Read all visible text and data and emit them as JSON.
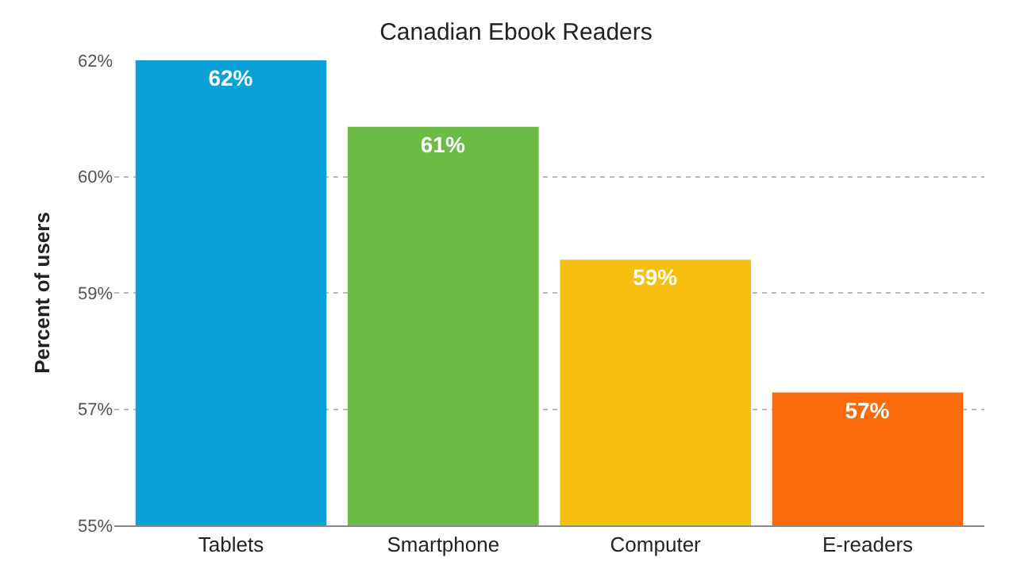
{
  "chart_data": {
    "type": "bar",
    "title": "Canadian Ebook Readers",
    "ylabel": "Percent of users",
    "categories": [
      "Tablets",
      "Smartphone",
      "Computer",
      "E-readers"
    ],
    "values": [
      62,
      61,
      59,
      57
    ],
    "value_labels": [
      "62%",
      "61%",
      "59%",
      "57%"
    ],
    "colors": [
      "#0aa0d8",
      "#6cbb45",
      "#f6bf10",
      "#fd6a0a"
    ],
    "ylim": [
      55,
      62
    ],
    "yticks": [
      {
        "value": 55,
        "label": "55%"
      },
      {
        "value": 56.75,
        "label": "57%"
      },
      {
        "value": 58.5,
        "label": "59%"
      },
      {
        "value": 60.25,
        "label": "60%"
      },
      {
        "value": 62,
        "label": "62%"
      }
    ],
    "grid": "y",
    "legend": false
  }
}
